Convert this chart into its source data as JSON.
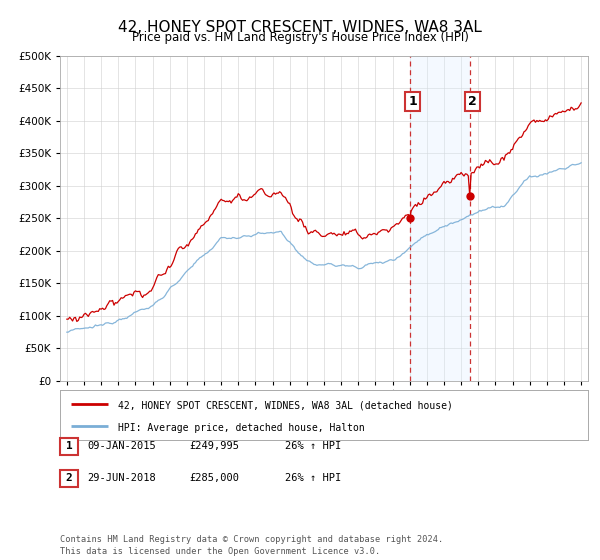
{
  "title": "42, HONEY SPOT CRESCENT, WIDNES, WA8 3AL",
  "subtitle": "Price paid vs. HM Land Registry's House Price Index (HPI)",
  "legend_line1": "42, HONEY SPOT CRESCENT, WIDNES, WA8 3AL (detached house)",
  "legend_line2": "HPI: Average price, detached house, Halton",
  "annotation1_label": "1",
  "annotation1_date": "09-JAN-2015",
  "annotation1_price": "£249,995",
  "annotation1_hpi": "26% ↑ HPI",
  "annotation2_label": "2",
  "annotation2_date": "29-JUN-2018",
  "annotation2_price": "£285,000",
  "annotation2_hpi": "26% ↑ HPI",
  "footer": "Contains HM Land Registry data © Crown copyright and database right 2024.\nThis data is licensed under the Open Government Licence v3.0.",
  "sale1_year": 2015.03,
  "sale1_value": 249995,
  "sale2_year": 2018.5,
  "sale2_value": 285000,
  "hpi_color": "#7aaed6",
  "price_color": "#cc0000",
  "highlight_color": "#ddeeff",
  "ylim_max": 500000,
  "ylim_min": 0,
  "title_fontsize": 11,
  "subtitle_fontsize": 9
}
